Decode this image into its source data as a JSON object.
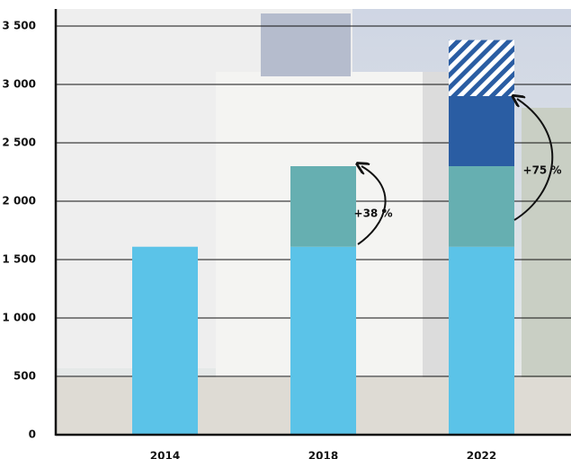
{
  "chart_data": {
    "type": "stacked-bar",
    "categories": [
      "2014",
      "2018",
      "2022"
    ],
    "series": [
      {
        "color": "#5bc3e8",
        "values": [
          1610,
          1610,
          1610
        ]
      },
      {
        "color": "#66afb1",
        "values": [
          null,
          690,
          690
        ]
      },
      {
        "color": "#2a5da3",
        "values": [
          null,
          null,
          600
        ]
      },
      {
        "color": "#2a5da3",
        "hatch": true,
        "values": [
          null,
          null,
          480
        ]
      }
    ],
    "ylim": [
      0,
      3500
    ],
    "yticks": [
      0,
      500,
      {
        "value": 1000,
        "label": "1 000"
      },
      {
        "value": 1500,
        "label": "1 500"
      },
      {
        "value": 2000,
        "label": "2 000"
      },
      {
        "value": 2500,
        "label": "2 500"
      },
      {
        "value": 3000,
        "label": "3 000"
      },
      {
        "value": 3500,
        "label": "3 500"
      }
    ],
    "grid": true,
    "annotations": [
      "+38 %",
      "+75 %"
    ]
  }
}
